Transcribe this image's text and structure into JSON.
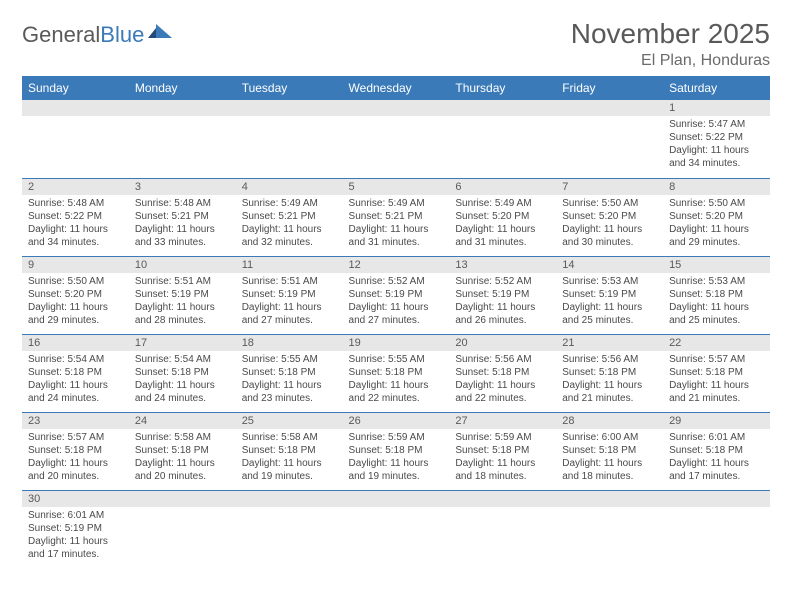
{
  "logo": {
    "text1": "General",
    "text2": "Blue"
  },
  "title": "November 2025",
  "location": "El Plan, Honduras",
  "colors": {
    "header_bg": "#3a7ab8",
    "header_fg": "#ffffff",
    "daynum_bg": "#e7e7e7",
    "rule": "#3a7ab8"
  },
  "weekdays": [
    "Sunday",
    "Monday",
    "Tuesday",
    "Wednesday",
    "Thursday",
    "Friday",
    "Saturday"
  ],
  "weeks": [
    [
      null,
      null,
      null,
      null,
      null,
      null,
      {
        "n": "1",
        "sr": "Sunrise: 5:47 AM",
        "ss": "Sunset: 5:22 PM",
        "dl": "Daylight: 11 hours and 34 minutes."
      }
    ],
    [
      {
        "n": "2",
        "sr": "Sunrise: 5:48 AM",
        "ss": "Sunset: 5:22 PM",
        "dl": "Daylight: 11 hours and 34 minutes."
      },
      {
        "n": "3",
        "sr": "Sunrise: 5:48 AM",
        "ss": "Sunset: 5:21 PM",
        "dl": "Daylight: 11 hours and 33 minutes."
      },
      {
        "n": "4",
        "sr": "Sunrise: 5:49 AM",
        "ss": "Sunset: 5:21 PM",
        "dl": "Daylight: 11 hours and 32 minutes."
      },
      {
        "n": "5",
        "sr": "Sunrise: 5:49 AM",
        "ss": "Sunset: 5:21 PM",
        "dl": "Daylight: 11 hours and 31 minutes."
      },
      {
        "n": "6",
        "sr": "Sunrise: 5:49 AM",
        "ss": "Sunset: 5:20 PM",
        "dl": "Daylight: 11 hours and 31 minutes."
      },
      {
        "n": "7",
        "sr": "Sunrise: 5:50 AM",
        "ss": "Sunset: 5:20 PM",
        "dl": "Daylight: 11 hours and 30 minutes."
      },
      {
        "n": "8",
        "sr": "Sunrise: 5:50 AM",
        "ss": "Sunset: 5:20 PM",
        "dl": "Daylight: 11 hours and 29 minutes."
      }
    ],
    [
      {
        "n": "9",
        "sr": "Sunrise: 5:50 AM",
        "ss": "Sunset: 5:20 PM",
        "dl": "Daylight: 11 hours and 29 minutes."
      },
      {
        "n": "10",
        "sr": "Sunrise: 5:51 AM",
        "ss": "Sunset: 5:19 PM",
        "dl": "Daylight: 11 hours and 28 minutes."
      },
      {
        "n": "11",
        "sr": "Sunrise: 5:51 AM",
        "ss": "Sunset: 5:19 PM",
        "dl": "Daylight: 11 hours and 27 minutes."
      },
      {
        "n": "12",
        "sr": "Sunrise: 5:52 AM",
        "ss": "Sunset: 5:19 PM",
        "dl": "Daylight: 11 hours and 27 minutes."
      },
      {
        "n": "13",
        "sr": "Sunrise: 5:52 AM",
        "ss": "Sunset: 5:19 PM",
        "dl": "Daylight: 11 hours and 26 minutes."
      },
      {
        "n": "14",
        "sr": "Sunrise: 5:53 AM",
        "ss": "Sunset: 5:19 PM",
        "dl": "Daylight: 11 hours and 25 minutes."
      },
      {
        "n": "15",
        "sr": "Sunrise: 5:53 AM",
        "ss": "Sunset: 5:18 PM",
        "dl": "Daylight: 11 hours and 25 minutes."
      }
    ],
    [
      {
        "n": "16",
        "sr": "Sunrise: 5:54 AM",
        "ss": "Sunset: 5:18 PM",
        "dl": "Daylight: 11 hours and 24 minutes."
      },
      {
        "n": "17",
        "sr": "Sunrise: 5:54 AM",
        "ss": "Sunset: 5:18 PM",
        "dl": "Daylight: 11 hours and 24 minutes."
      },
      {
        "n": "18",
        "sr": "Sunrise: 5:55 AM",
        "ss": "Sunset: 5:18 PM",
        "dl": "Daylight: 11 hours and 23 minutes."
      },
      {
        "n": "19",
        "sr": "Sunrise: 5:55 AM",
        "ss": "Sunset: 5:18 PM",
        "dl": "Daylight: 11 hours and 22 minutes."
      },
      {
        "n": "20",
        "sr": "Sunrise: 5:56 AM",
        "ss": "Sunset: 5:18 PM",
        "dl": "Daylight: 11 hours and 22 minutes."
      },
      {
        "n": "21",
        "sr": "Sunrise: 5:56 AM",
        "ss": "Sunset: 5:18 PM",
        "dl": "Daylight: 11 hours and 21 minutes."
      },
      {
        "n": "22",
        "sr": "Sunrise: 5:57 AM",
        "ss": "Sunset: 5:18 PM",
        "dl": "Daylight: 11 hours and 21 minutes."
      }
    ],
    [
      {
        "n": "23",
        "sr": "Sunrise: 5:57 AM",
        "ss": "Sunset: 5:18 PM",
        "dl": "Daylight: 11 hours and 20 minutes."
      },
      {
        "n": "24",
        "sr": "Sunrise: 5:58 AM",
        "ss": "Sunset: 5:18 PM",
        "dl": "Daylight: 11 hours and 20 minutes."
      },
      {
        "n": "25",
        "sr": "Sunrise: 5:58 AM",
        "ss": "Sunset: 5:18 PM",
        "dl": "Daylight: 11 hours and 19 minutes."
      },
      {
        "n": "26",
        "sr": "Sunrise: 5:59 AM",
        "ss": "Sunset: 5:18 PM",
        "dl": "Daylight: 11 hours and 19 minutes."
      },
      {
        "n": "27",
        "sr": "Sunrise: 5:59 AM",
        "ss": "Sunset: 5:18 PM",
        "dl": "Daylight: 11 hours and 18 minutes."
      },
      {
        "n": "28",
        "sr": "Sunrise: 6:00 AM",
        "ss": "Sunset: 5:18 PM",
        "dl": "Daylight: 11 hours and 18 minutes."
      },
      {
        "n": "29",
        "sr": "Sunrise: 6:01 AM",
        "ss": "Sunset: 5:18 PM",
        "dl": "Daylight: 11 hours and 17 minutes."
      }
    ],
    [
      {
        "n": "30",
        "sr": "Sunrise: 6:01 AM",
        "ss": "Sunset: 5:19 PM",
        "dl": "Daylight: 11 hours and 17 minutes."
      },
      null,
      null,
      null,
      null,
      null,
      null
    ]
  ]
}
